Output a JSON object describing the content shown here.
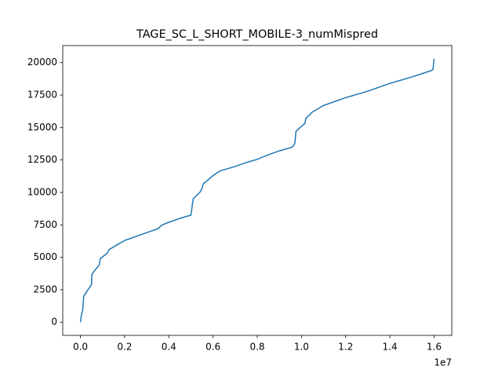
{
  "chart_data": {
    "type": "line",
    "title": "TAGE_SC_L_SHORT_MOBILE-3_numMispred",
    "x_offset_label": "1e7",
    "x": [
      0,
      50000,
      100000,
      150000,
      300000,
      500000,
      520000,
      700000,
      850000,
      900000,
      1200000,
      1300000,
      1700000,
      2000000,
      2500000,
      3000000,
      3500000,
      3700000,
      4000000,
      4500000,
      5000000,
      5100000,
      5400000,
      5500000,
      5550000,
      5800000,
      6000000,
      6300000,
      7000000,
      7500000,
      8000000,
      8500000,
      9000000,
      9600000,
      9700000,
      9750000,
      10000000,
      10150000,
      10200000,
      10500000,
      11000000,
      12000000,
      13000000,
      14000000,
      15000000,
      15900000,
      15950000,
      16000000
    ],
    "series": [
      {
        "color": "#1f77b4",
        "values": [
          0,
          600,
          900,
          2000,
          2400,
          2900,
          3700,
          4100,
          4400,
          4900,
          5300,
          5600,
          6000,
          6300,
          6600,
          6900,
          7200,
          7500,
          7700,
          8000,
          8250,
          9500,
          10000,
          10300,
          10650,
          11000,
          11300,
          11650,
          12000,
          12300,
          12550,
          12900,
          13200,
          13500,
          13800,
          14700,
          15100,
          15300,
          15700,
          16200,
          16700,
          17300,
          17800,
          18400,
          18900,
          19400,
          19500,
          20300
        ]
      }
    ],
    "xlim": [
      -800000,
      16800000
    ],
    "ylim": [
      -1015,
      21315
    ],
    "xticks": [
      {
        "value": 0,
        "label": "0.0"
      },
      {
        "value": 2000000,
        "label": "0.2"
      },
      {
        "value": 4000000,
        "label": "0.4"
      },
      {
        "value": 6000000,
        "label": "0.6"
      },
      {
        "value": 8000000,
        "label": "0.8"
      },
      {
        "value": 10000000,
        "label": "1.0"
      },
      {
        "value": 12000000,
        "label": "1.2"
      },
      {
        "value": 14000000,
        "label": "1.4"
      },
      {
        "value": 16000000,
        "label": "1.6"
      }
    ],
    "yticks": [
      0,
      2500,
      5000,
      7500,
      10000,
      12500,
      15000,
      17500,
      20000
    ]
  }
}
